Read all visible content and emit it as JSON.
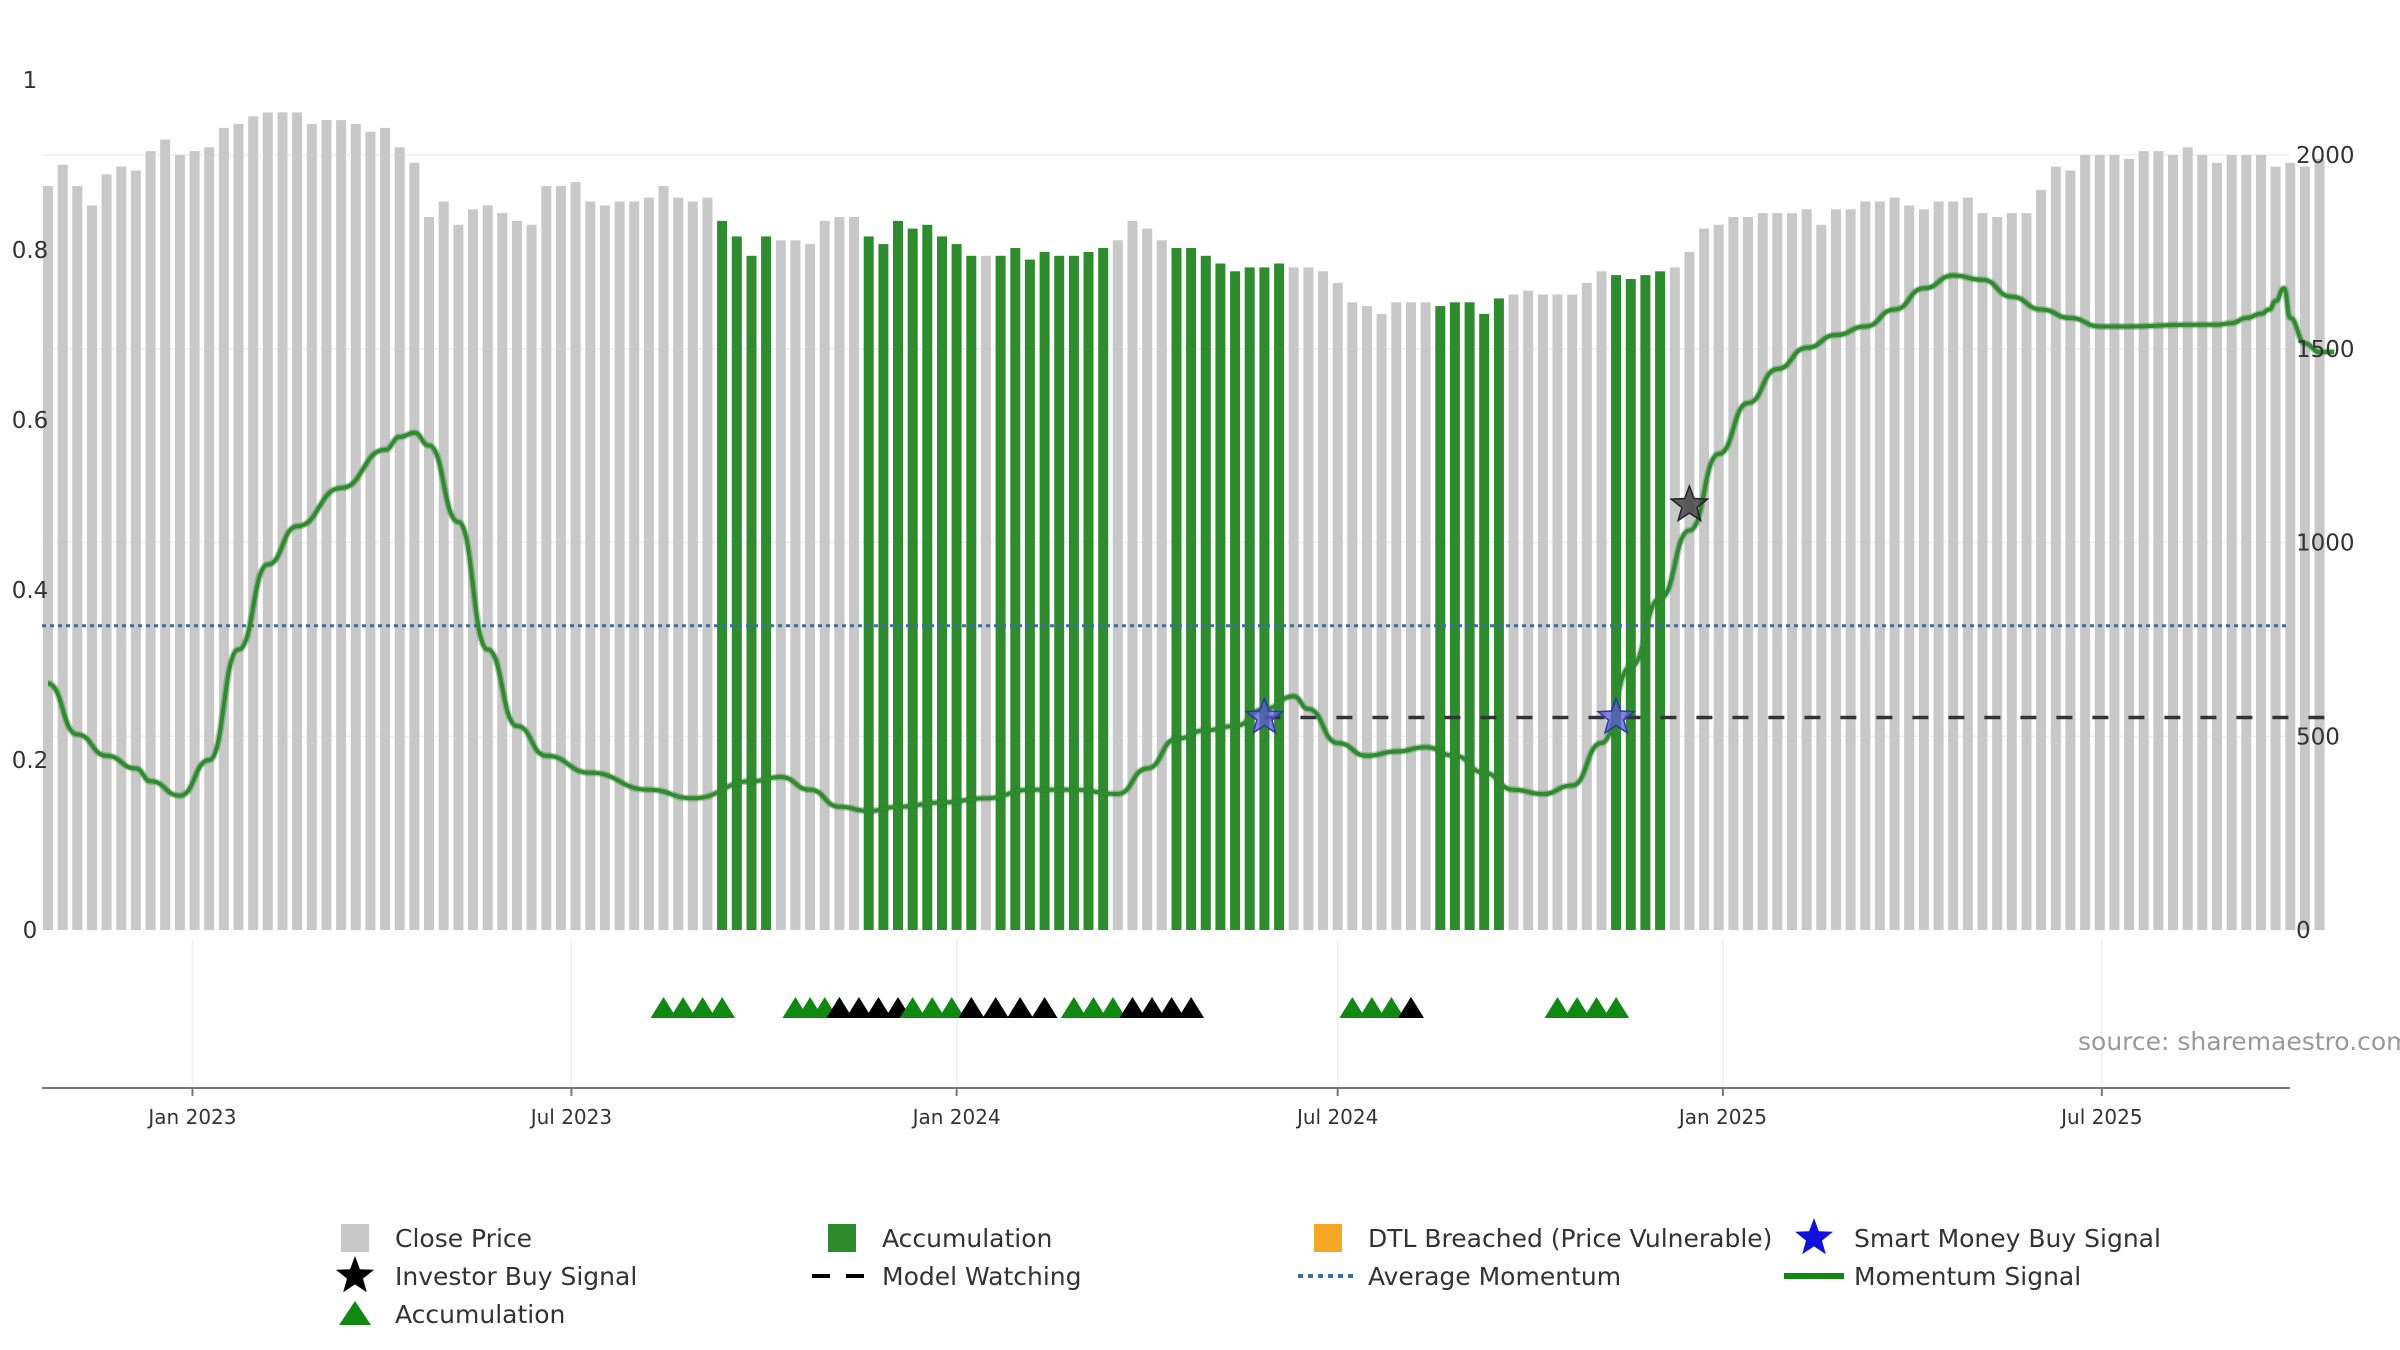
{
  "source_text": "source: sharemaestro.com",
  "colors": {
    "price": "#c8c8c8",
    "accumulation": "#2e8b2e",
    "momentum": "#2e8b2e",
    "average": "#3a6ea5",
    "watching": "#333333",
    "investor_star": "#444444",
    "smart_star": "#5b5bd6",
    "dtl": "#f5a623",
    "triangle_green": "#118811",
    "triangle_black": "#000000"
  },
  "chart_data": {
    "type": "bar",
    "x_range": [
      "2022-10-24",
      "2025-09-26"
    ],
    "left_axis": {
      "ylim": [
        0,
        1
      ],
      "ticks": [
        0,
        0.2,
        0.4,
        0.6,
        0.8,
        1
      ],
      "tick_labels": [
        "0",
        "0.2",
        "0.4",
        "0.6",
        "0.8",
        "1"
      ]
    },
    "right_axis": {
      "ylim": [
        0,
        2000
      ],
      "ticks": [
        0,
        500,
        1000,
        1500,
        2000
      ],
      "tick_labels": [
        "0",
        "500",
        "1000",
        "1500",
        "2000"
      ]
    },
    "x_ticks": [
      {
        "date": "2023-01-01",
        "label": "Jan 2023"
      },
      {
        "date": "2023-07-01",
        "label": "Jul 2023"
      },
      {
        "date": "2024-01-01",
        "label": "Jan 2024"
      },
      {
        "date": "2024-07-01",
        "label": "Jul 2024"
      },
      {
        "date": "2025-01-01",
        "label": "Jan 2025"
      },
      {
        "date": "2025-07-01",
        "label": "Jul 2025"
      }
    ],
    "close_price": {
      "name": "Close Price",
      "start": "2022-10-24",
      "interval_days": 7,
      "values": [
        1920,
        1975,
        1920,
        1870,
        1950,
        1970,
        1960,
        2010,
        2040,
        2000,
        2010,
        2020,
        2070,
        2080,
        2100,
        2110,
        2110,
        2110,
        2080,
        2090,
        2090,
        2080,
        2060,
        2070,
        2020,
        1980,
        1840,
        1880,
        1820,
        1860,
        1870,
        1850,
        1830,
        1820,
        1920,
        1920,
        1930,
        1880,
        1870,
        1880,
        1880,
        1890,
        1920,
        1890,
        1880,
        1890,
        1830,
        1790,
        1740,
        1790,
        1780,
        1780,
        1770,
        1830,
        1840,
        1840,
        1790,
        1770,
        1830,
        1810,
        1820,
        1790,
        1770,
        1740,
        1740,
        1740,
        1760,
        1730,
        1750,
        1740,
        1740,
        1750,
        1760,
        1780,
        1830,
        1810,
        1780,
        1760,
        1760,
        1740,
        1720,
        1700,
        1710,
        1710,
        1720,
        1710,
        1710,
        1700,
        1670,
        1620,
        1610,
        1590,
        1620,
        1620,
        1620,
        1610,
        1620,
        1620,
        1590,
        1630,
        1640,
        1650,
        1640,
        1640,
        1640,
        1670,
        1700,
        1690,
        1680,
        1690,
        1700,
        1710,
        1750,
        1810,
        1820,
        1840,
        1840,
        1850,
        1850,
        1850,
        1860,
        1820,
        1860,
        1860,
        1880,
        1880,
        1890,
        1870,
        1860,
        1880,
        1880,
        1890,
        1850,
        1840,
        1850,
        1850,
        1910,
        1970,
        1960,
        2000,
        2000,
        2000,
        1990,
        2010,
        2010,
        2000,
        2020,
        2000,
        1980,
        2000,
        2000,
        2000,
        1970,
        1980,
        1970,
        1990
      ]
    },
    "accumulation_bars": {
      "name": "Accumulation",
      "ranges": [
        [
          46,
          49
        ],
        [
          56,
          63
        ],
        [
          65,
          72
        ],
        [
          77,
          84
        ],
        [
          95,
          99
        ],
        [
          107,
          110
        ]
      ]
    },
    "momentum": {
      "name": "Momentum Signal",
      "points": [
        [
          "2022-10-24",
          0.29
        ],
        [
          "2022-11-07",
          0.23
        ],
        [
          "2022-11-21",
          0.205
        ],
        [
          "2022-12-05",
          0.19
        ],
        [
          "2022-12-12",
          0.175
        ],
        [
          "2022-12-26",
          0.158
        ],
        [
          "2023-01-09",
          0.2
        ],
        [
          "2023-01-23",
          0.33
        ],
        [
          "2023-02-06",
          0.43
        ],
        [
          "2023-02-20",
          0.475
        ],
        [
          "2023-03-13",
          0.52
        ],
        [
          "2023-04-03",
          0.565
        ],
        [
          "2023-04-10",
          0.58
        ],
        [
          "2023-04-17",
          0.585
        ],
        [
          "2023-04-24",
          0.57
        ],
        [
          "2023-05-08",
          0.48
        ],
        [
          "2023-05-22",
          0.33
        ],
        [
          "2023-06-05",
          0.24
        ],
        [
          "2023-06-19",
          0.205
        ],
        [
          "2023-07-10",
          0.185
        ],
        [
          "2023-08-07",
          0.165
        ],
        [
          "2023-08-28",
          0.155
        ],
        [
          "2023-09-25",
          0.175
        ],
        [
          "2023-10-09",
          0.18
        ],
        [
          "2023-10-23",
          0.165
        ],
        [
          "2023-11-06",
          0.145
        ],
        [
          "2023-11-20",
          0.14
        ],
        [
          "2023-12-04",
          0.145
        ],
        [
          "2023-12-25",
          0.15
        ],
        [
          "2024-01-15",
          0.155
        ],
        [
          "2024-02-05",
          0.165
        ],
        [
          "2024-02-26",
          0.165
        ],
        [
          "2024-03-18",
          0.16
        ],
        [
          "2024-04-01",
          0.19
        ],
        [
          "2024-04-15",
          0.225
        ],
        [
          "2024-04-29",
          0.235
        ],
        [
          "2024-05-13",
          0.24
        ],
        [
          "2024-05-27",
          0.26
        ],
        [
          "2024-06-10",
          0.275
        ],
        [
          "2024-06-17",
          0.26
        ],
        [
          "2024-07-01",
          0.22
        ],
        [
          "2024-07-15",
          0.205
        ],
        [
          "2024-07-29",
          0.21
        ],
        [
          "2024-08-12",
          0.215
        ],
        [
          "2024-08-26",
          0.205
        ],
        [
          "2024-09-09",
          0.185
        ],
        [
          "2024-09-23",
          0.165
        ],
        [
          "2024-10-07",
          0.16
        ],
        [
          "2024-10-21",
          0.17
        ],
        [
          "2024-11-04",
          0.22
        ],
        [
          "2024-11-18",
          0.31
        ],
        [
          "2024-12-02",
          0.39
        ],
        [
          "2024-12-16",
          0.47
        ],
        [
          "2024-12-30",
          0.56
        ],
        [
          "2025-01-13",
          0.62
        ],
        [
          "2025-01-27",
          0.66
        ],
        [
          "2025-02-10",
          0.685
        ],
        [
          "2025-02-24",
          0.7
        ],
        [
          "2025-03-10",
          0.71
        ],
        [
          "2025-03-24",
          0.73
        ],
        [
          "2025-04-07",
          0.755
        ],
        [
          "2025-04-21",
          0.77
        ],
        [
          "2025-05-05",
          0.765
        ],
        [
          "2025-05-19",
          0.745
        ],
        [
          "2025-06-02",
          0.73
        ],
        [
          "2025-06-16",
          0.72
        ],
        [
          "2025-06-30",
          0.71
        ],
        [
          "2025-07-14",
          0.71
        ],
        [
          "2025-08-11",
          0.712
        ],
        [
          "2025-08-25",
          0.712
        ],
        [
          "2025-09-01",
          0.714
        ],
        [
          "2025-09-08",
          0.72
        ],
        [
          "2025-09-15",
          0.725
        ],
        [
          "2025-09-19",
          0.73
        ],
        [
          "2025-09-22",
          0.74
        ],
        [
          "2025-09-26",
          0.755
        ],
        [
          "2025-09-29",
          0.72
        ],
        [
          "2025-10-06",
          0.69
        ],
        [
          "2025-10-13",
          0.68
        ],
        [
          "2025-10-20",
          0.68
        ]
      ]
    },
    "average_momentum": {
      "name": "Average Momentum",
      "value": 0.358
    },
    "model_watching": {
      "name": "Model Watching",
      "value": 0.25,
      "from": "2024-05-27",
      "to": "2025-10-20"
    },
    "smart_money_signals": {
      "name": "Smart Money Buy Signal",
      "points": [
        [
          "2024-05-27",
          0.25
        ],
        [
          "2024-11-11",
          0.25
        ]
      ]
    },
    "investor_signals": {
      "name": "Investor Buy Signal",
      "points": [
        [
          "2024-12-16",
          0.5
        ]
      ]
    },
    "accumulation_markers": {
      "name": "Accumulation",
      "groups": [
        {
          "from": "2023-08-14",
          "to": "2023-09-11",
          "green": 4,
          "black": 0
        },
        {
          "from": "2023-10-16",
          "to": "2023-11-06",
          "green": 4,
          "black": 0
        },
        {
          "from": "2023-11-06",
          "to": "2023-12-04",
          "green": 0,
          "black": 4
        },
        {
          "from": "2023-12-11",
          "to": "2024-01-08",
          "green": 4,
          "black": 0
        },
        {
          "from": "2024-01-08",
          "to": "2024-02-12",
          "green": 0,
          "black": 4
        },
        {
          "from": "2024-02-26",
          "to": "2024-03-25",
          "green": 4,
          "black": 0
        },
        {
          "from": "2024-03-25",
          "to": "2024-04-22",
          "green": 0,
          "black": 4
        },
        {
          "from": "2024-07-08",
          "to": "2024-08-05",
          "green": 4,
          "black": 0
        },
        {
          "from": "2024-08-05",
          "to": "2024-08-12",
          "green": 0,
          "black": 1
        },
        {
          "from": "2024-10-14",
          "to": "2024-11-11",
          "green": 4,
          "black": 0
        }
      ]
    },
    "legend": {
      "placement": "bottom",
      "items": [
        {
          "label": "Close Price",
          "symbol": "square-gray"
        },
        {
          "label": "Accumulation",
          "symbol": "square-green"
        },
        {
          "label": "DTL Breached (Price Vulnerable)",
          "symbol": "square-orange"
        },
        {
          "label": "Smart Money Buy Signal",
          "symbol": "star-blue"
        },
        {
          "label": "Investor Buy Signal",
          "symbol": "star-black"
        },
        {
          "label": "Model Watching",
          "symbol": "dash-black"
        },
        {
          "label": "Average Momentum",
          "symbol": "dot-blue"
        },
        {
          "label": "Momentum Signal",
          "symbol": "line-green"
        },
        {
          "label": "Accumulation",
          "symbol": "triangle-green"
        }
      ]
    }
  }
}
